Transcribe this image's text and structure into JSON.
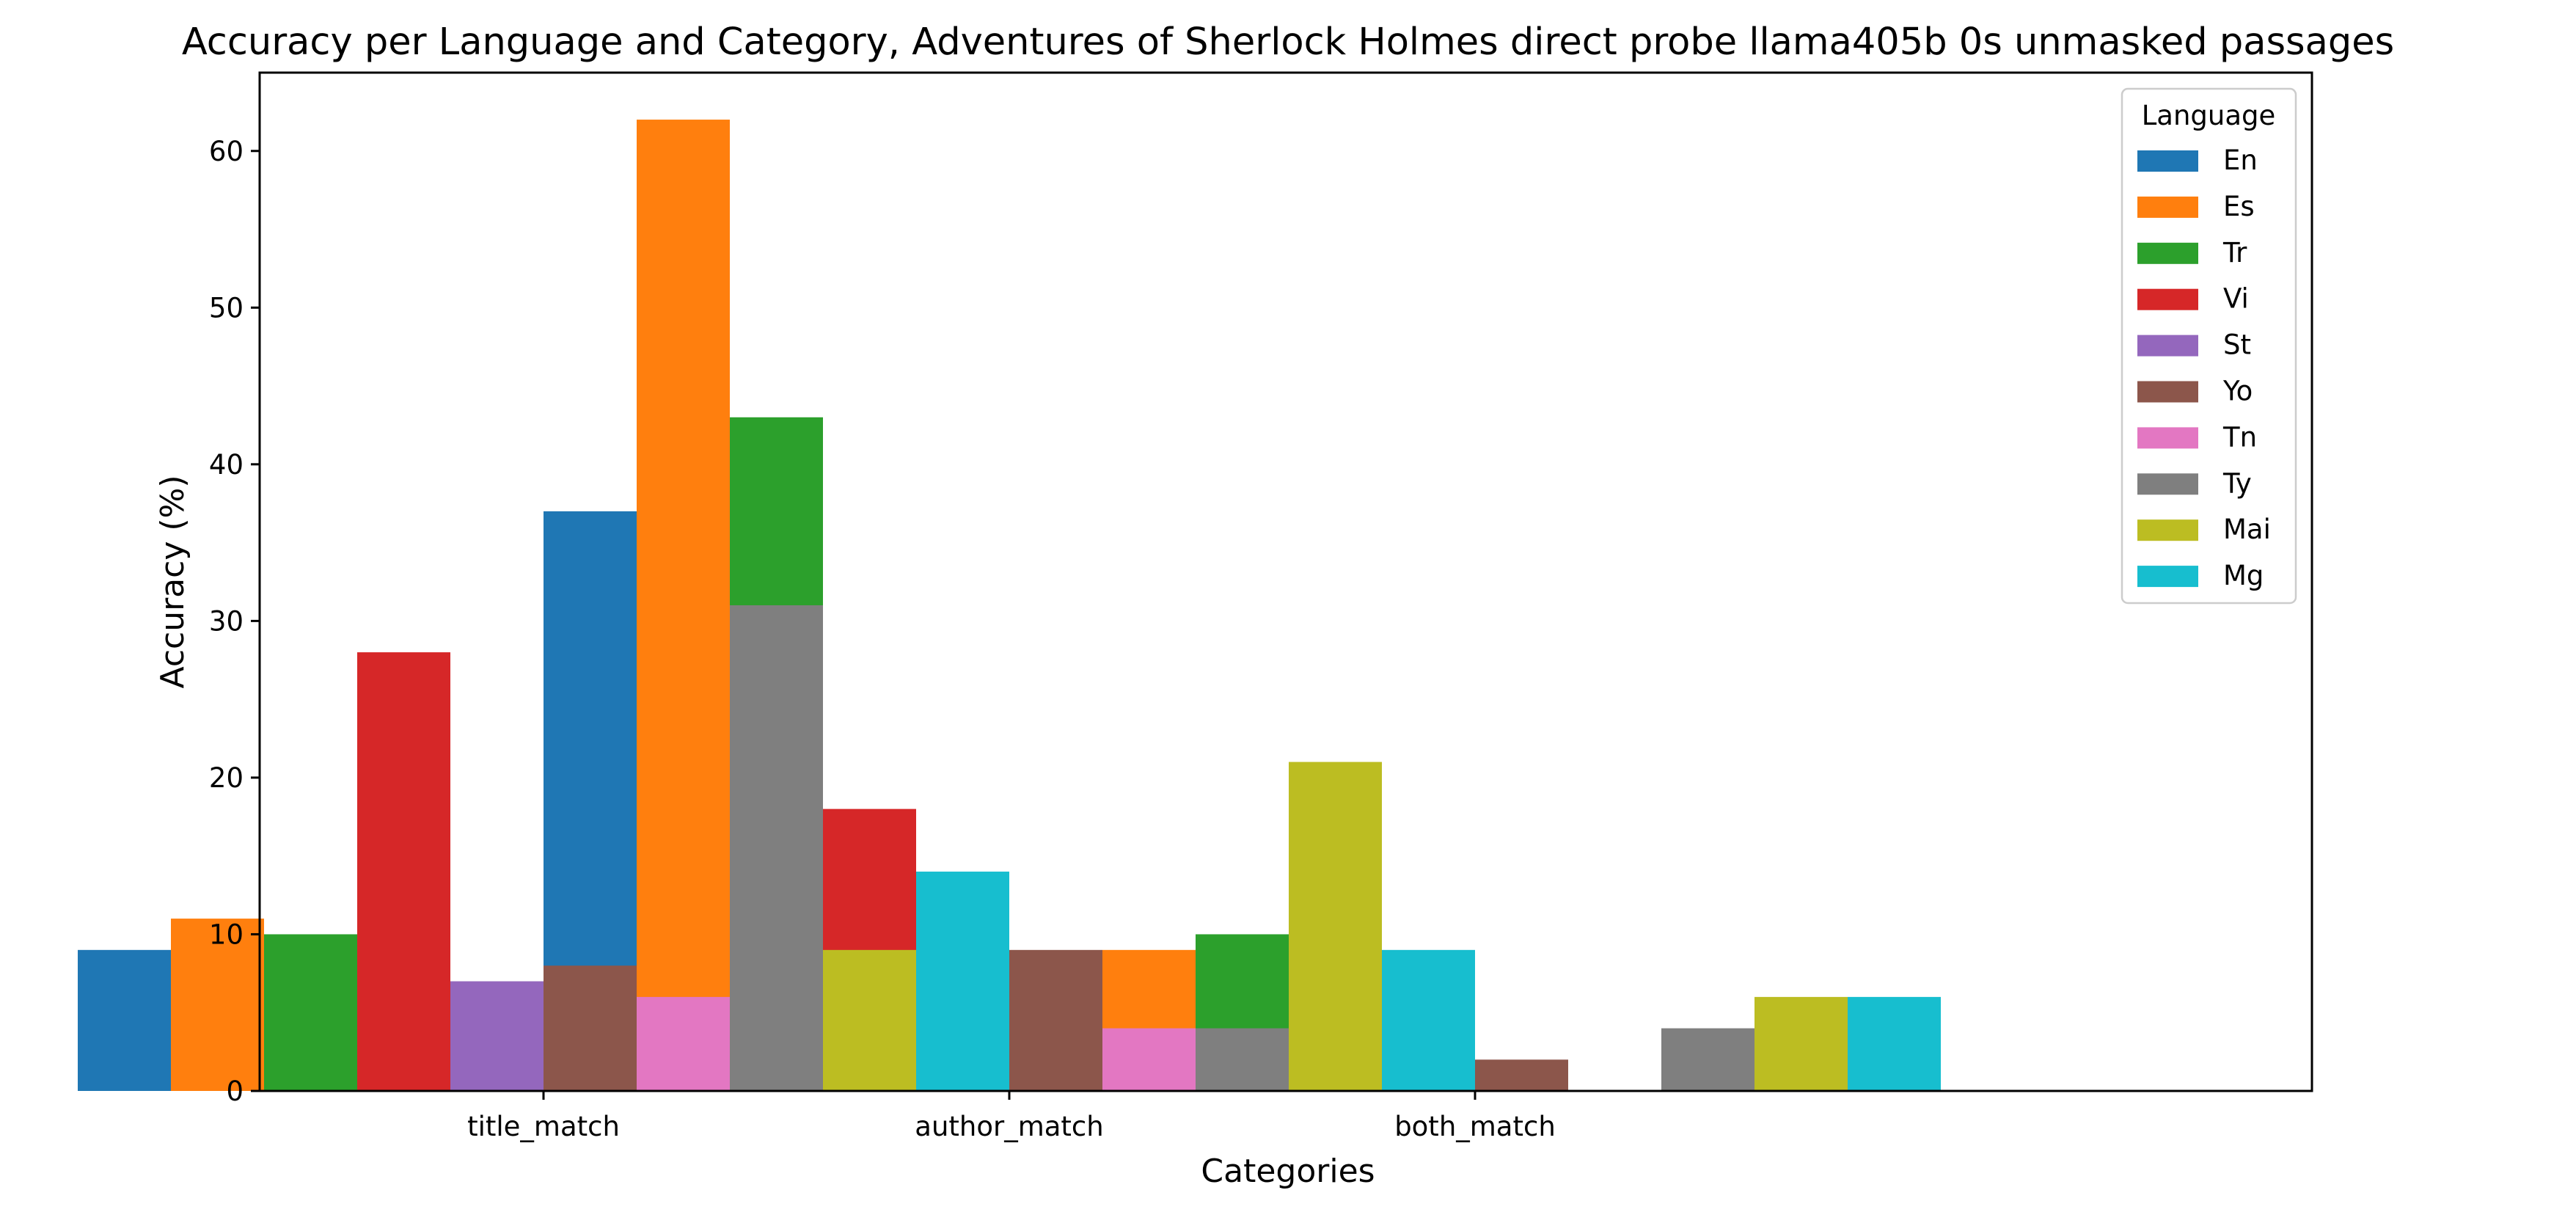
{
  "chart_data": {
    "type": "bar",
    "title": "Accuracy per Language and Category, Adventures of Sherlock Holmes direct probe llama405b 0s unmasked passages",
    "xlabel": "Categories",
    "ylabel": "Accuracy (%)",
    "ylim": [
      0,
      65
    ],
    "yticks": [
      "0",
      "10",
      "20",
      "30",
      "40",
      "50",
      "60"
    ],
    "categories": [
      "title_match",
      "author_match",
      "both_match"
    ],
    "grid": false,
    "legend": {
      "title": "Language",
      "position": "top-right"
    },
    "series": [
      {
        "name": "En",
        "color": "#1f77b4",
        "values": [
          9,
          37,
          0
        ]
      },
      {
        "name": "Es",
        "color": "#ff7f0e",
        "values": [
          11,
          62,
          9
        ]
      },
      {
        "name": "Tr",
        "color": "#2ca02c",
        "values": [
          10,
          43,
          10
        ]
      },
      {
        "name": "Vi",
        "color": "#d62728",
        "values": [
          28,
          18,
          0
        ]
      },
      {
        "name": "St",
        "color": "#9467bd",
        "values": [
          7,
          0,
          0
        ]
      },
      {
        "name": "Yo",
        "color": "#8c564b",
        "values": [
          8,
          9,
          2
        ]
      },
      {
        "name": "Tn",
        "color": "#e377c2",
        "values": [
          6,
          4,
          0
        ]
      },
      {
        "name": "Ty",
        "color": "#7f7f7f",
        "values": [
          31,
          4,
          4
        ]
      },
      {
        "name": "Mai",
        "color": "#bcbd22",
        "values": [
          9,
          21,
          6
        ]
      },
      {
        "name": "Mg",
        "color": "#17becf",
        "values": [
          14,
          9,
          6
        ]
      }
    ]
  }
}
